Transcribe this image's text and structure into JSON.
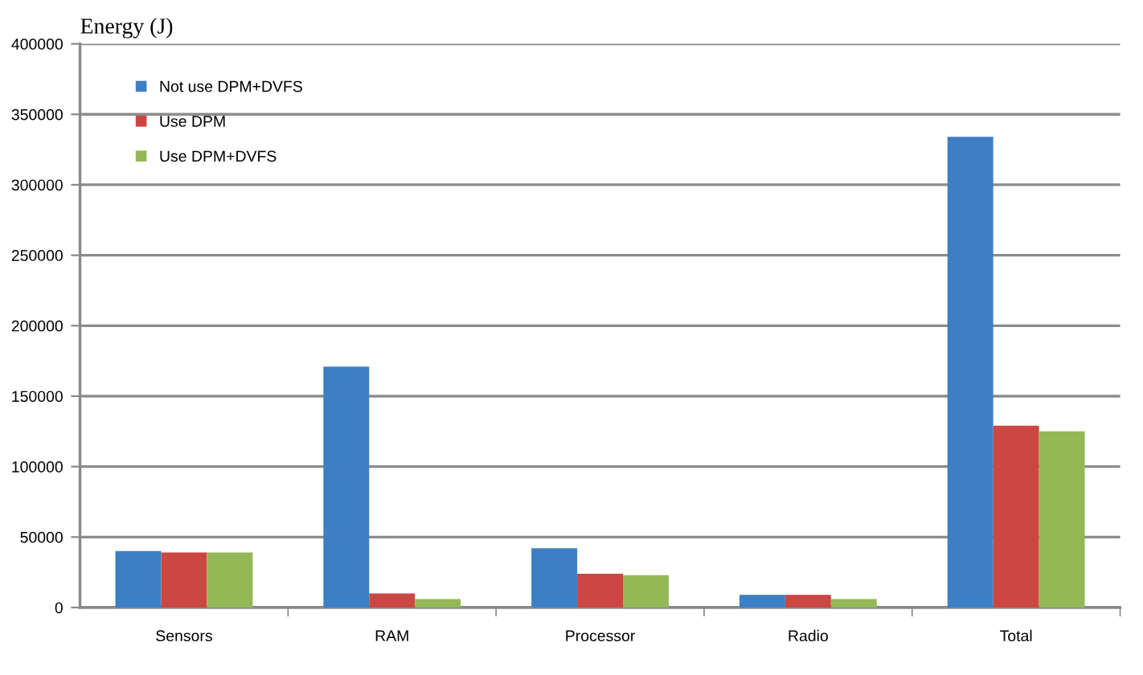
{
  "chart_data": {
    "type": "bar",
    "ylabel": "Energy (J)",
    "categories": [
      "Sensors",
      "RAM",
      "Processor",
      "Radio",
      "Total"
    ],
    "series": [
      {
        "name": "Not use DPM+DVFS",
        "color": "#3d7fc4",
        "values": [
          40000,
          171000,
          42000,
          9000,
          334000
        ]
      },
      {
        "name": "Use DPM",
        "color": "#cc4643",
        "values": [
          39000,
          10000,
          24000,
          9000,
          129000
        ]
      },
      {
        "name": "Use DPM+DVFS",
        "color": "#93b957",
        "values": [
          39000,
          6000,
          23000,
          6000,
          125000
        ]
      }
    ],
    "ylim": [
      0,
      400000
    ],
    "yticks": [
      0,
      50000,
      100000,
      150000,
      200000,
      250000,
      300000,
      350000,
      400000
    ],
    "grid": "y",
    "legend": "top left"
  }
}
